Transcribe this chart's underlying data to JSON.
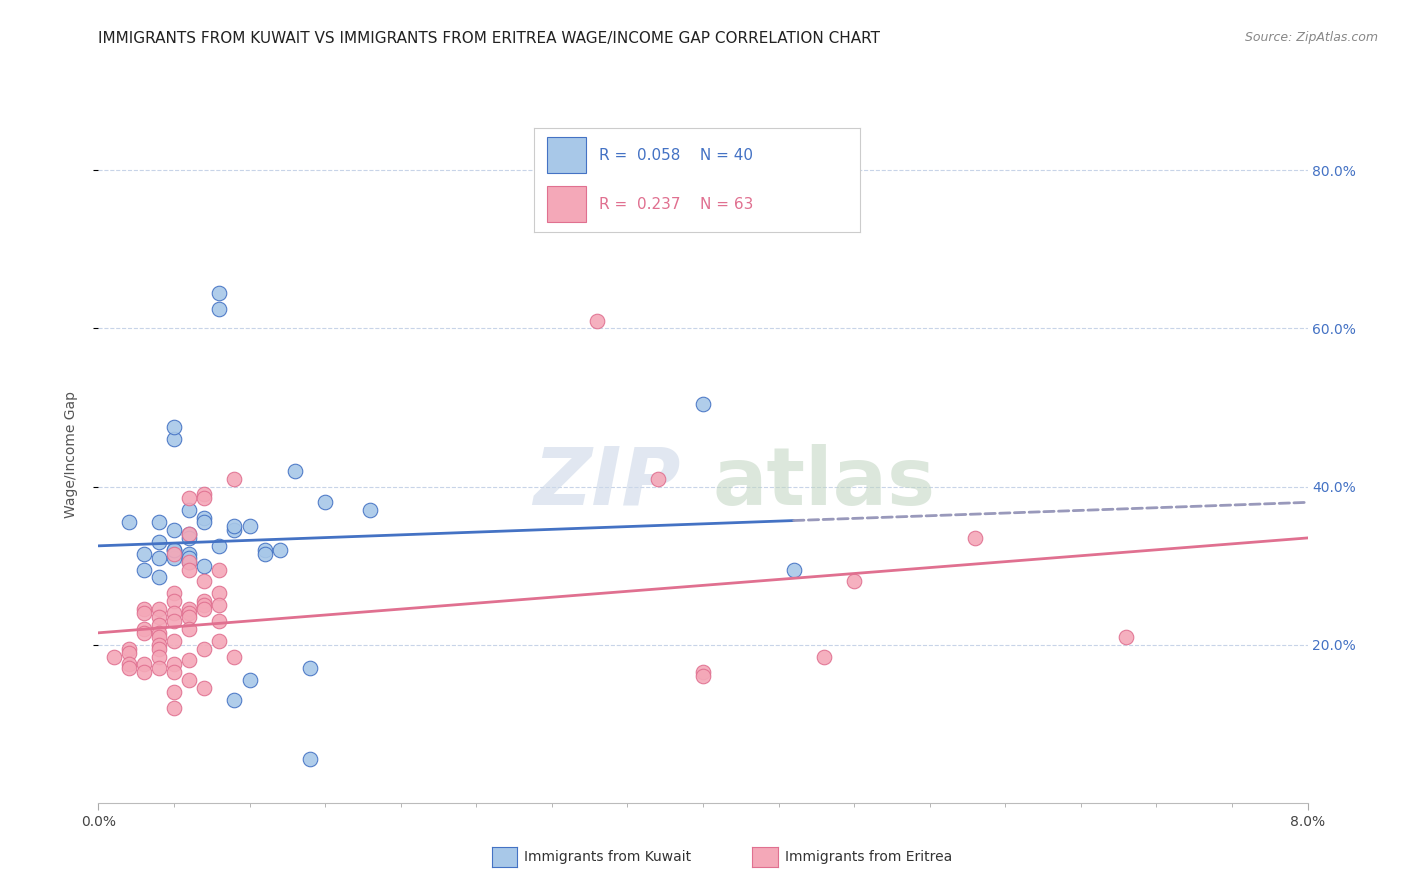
{
  "title": "IMMIGRANTS FROM KUWAIT VS IMMIGRANTS FROM ERITREA WAGE/INCOME GAP CORRELATION CHART",
  "source": "Source: ZipAtlas.com",
  "ylabel": "Wage/Income Gap",
  "ylabel_tick_vals": [
    0.2,
    0.4,
    0.6,
    0.8
  ],
  "xlim": [
    0.0,
    0.08
  ],
  "ylim": [
    0.0,
    0.88
  ],
  "color_kuwait": "#a8c8e8",
  "color_eritrea": "#f4a8b8",
  "color_line_kuwait": "#4472c4",
  "color_line_eritrea": "#e07090",
  "color_dashed": "#aaaacc",
  "color_axis_right": "#4472c4",
  "color_grid": "#c8d4e8",
  "kuwait_points": [
    [
      0.002,
      0.355
    ],
    [
      0.003,
      0.295
    ],
    [
      0.003,
      0.315
    ],
    [
      0.004,
      0.31
    ],
    [
      0.004,
      0.33
    ],
    [
      0.004,
      0.285
    ],
    [
      0.004,
      0.355
    ],
    [
      0.005,
      0.46
    ],
    [
      0.005,
      0.475
    ],
    [
      0.005,
      0.32
    ],
    [
      0.005,
      0.31
    ],
    [
      0.005,
      0.345
    ],
    [
      0.005,
      0.32
    ],
    [
      0.006,
      0.305
    ],
    [
      0.006,
      0.315
    ],
    [
      0.006,
      0.31
    ],
    [
      0.006,
      0.34
    ],
    [
      0.006,
      0.335
    ],
    [
      0.006,
      0.37
    ],
    [
      0.007,
      0.3
    ],
    [
      0.007,
      0.36
    ],
    [
      0.007,
      0.355
    ],
    [
      0.008,
      0.325
    ],
    [
      0.008,
      0.625
    ],
    [
      0.008,
      0.645
    ],
    [
      0.009,
      0.345
    ],
    [
      0.009,
      0.35
    ],
    [
      0.009,
      0.13
    ],
    [
      0.01,
      0.155
    ],
    [
      0.01,
      0.35
    ],
    [
      0.011,
      0.32
    ],
    [
      0.011,
      0.315
    ],
    [
      0.012,
      0.32
    ],
    [
      0.013,
      0.42
    ],
    [
      0.014,
      0.17
    ],
    [
      0.014,
      0.055
    ],
    [
      0.015,
      0.38
    ],
    [
      0.018,
      0.37
    ],
    [
      0.04,
      0.505
    ],
    [
      0.046,
      0.295
    ]
  ],
  "eritrea_points": [
    [
      0.001,
      0.185
    ],
    [
      0.002,
      0.195
    ],
    [
      0.002,
      0.19
    ],
    [
      0.002,
      0.175
    ],
    [
      0.002,
      0.17
    ],
    [
      0.003,
      0.22
    ],
    [
      0.003,
      0.245
    ],
    [
      0.003,
      0.215
    ],
    [
      0.003,
      0.175
    ],
    [
      0.003,
      0.165
    ],
    [
      0.003,
      0.24
    ],
    [
      0.004,
      0.245
    ],
    [
      0.004,
      0.235
    ],
    [
      0.004,
      0.225
    ],
    [
      0.004,
      0.215
    ],
    [
      0.004,
      0.21
    ],
    [
      0.004,
      0.2
    ],
    [
      0.004,
      0.195
    ],
    [
      0.004,
      0.185
    ],
    [
      0.004,
      0.17
    ],
    [
      0.005,
      0.315
    ],
    [
      0.005,
      0.265
    ],
    [
      0.005,
      0.255
    ],
    [
      0.005,
      0.24
    ],
    [
      0.005,
      0.23
    ],
    [
      0.005,
      0.205
    ],
    [
      0.005,
      0.175
    ],
    [
      0.005,
      0.165
    ],
    [
      0.005,
      0.14
    ],
    [
      0.005,
      0.12
    ],
    [
      0.006,
      0.385
    ],
    [
      0.006,
      0.34
    ],
    [
      0.006,
      0.305
    ],
    [
      0.006,
      0.295
    ],
    [
      0.006,
      0.245
    ],
    [
      0.006,
      0.24
    ],
    [
      0.006,
      0.235
    ],
    [
      0.006,
      0.22
    ],
    [
      0.006,
      0.18
    ],
    [
      0.006,
      0.155
    ],
    [
      0.007,
      0.39
    ],
    [
      0.007,
      0.385
    ],
    [
      0.007,
      0.28
    ],
    [
      0.007,
      0.255
    ],
    [
      0.007,
      0.25
    ],
    [
      0.007,
      0.245
    ],
    [
      0.007,
      0.195
    ],
    [
      0.007,
      0.145
    ],
    [
      0.008,
      0.295
    ],
    [
      0.008,
      0.265
    ],
    [
      0.008,
      0.25
    ],
    [
      0.008,
      0.23
    ],
    [
      0.008,
      0.205
    ],
    [
      0.009,
      0.41
    ],
    [
      0.009,
      0.185
    ],
    [
      0.033,
      0.61
    ],
    [
      0.037,
      0.41
    ],
    [
      0.04,
      0.165
    ],
    [
      0.04,
      0.16
    ],
    [
      0.048,
      0.185
    ],
    [
      0.05,
      0.28
    ],
    [
      0.058,
      0.335
    ],
    [
      0.068,
      0.21
    ]
  ],
  "kuwait_trend_x": [
    0.0,
    0.046,
    0.08
  ],
  "kuwait_trend_y": [
    0.325,
    0.357,
    0.38
  ],
  "kuwait_dash_idx": 1,
  "eritrea_trend_x": [
    0.0,
    0.08
  ],
  "eritrea_trend_y": [
    0.215,
    0.335
  ],
  "background_color": "#ffffff"
}
